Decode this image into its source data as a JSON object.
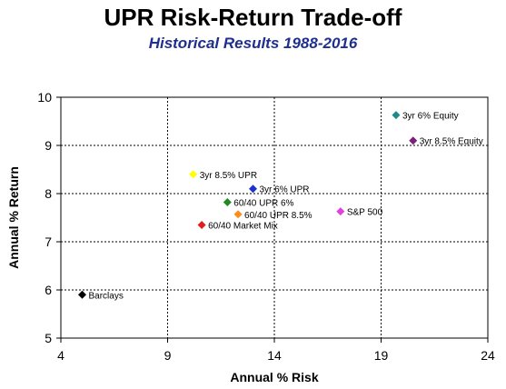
{
  "chart_data": {
    "type": "scatter",
    "title": "UPR Risk-Return Trade-off",
    "subtitle": "Historical Results 1988-2016",
    "xlabel": "Annual % Risk",
    "ylabel": "Annual % Return",
    "xlim": [
      4,
      24
    ],
    "ylim": [
      5,
      10
    ],
    "xticks": [
      "4",
      "9",
      "14",
      "19",
      "24"
    ],
    "yticks": [
      "5",
      "6",
      "7",
      "8",
      "9",
      "10"
    ],
    "grid": true,
    "points": [
      {
        "name": "3yr 6% Equity",
        "x": 19.7,
        "y": 9.63,
        "color": "#1f8a8a"
      },
      {
        "name": "3yr 8.5% Equity",
        "x": 20.5,
        "y": 9.1,
        "color": "#7a1f7a"
      },
      {
        "name": "3yr 8.5% UPR",
        "x": 10.2,
        "y": 8.4,
        "color": "#ffff00"
      },
      {
        "name": "3yr 6% UPR",
        "x": 13.0,
        "y": 8.1,
        "color": "#1f2fd0"
      },
      {
        "name": "60/40 UPR 6%",
        "x": 11.8,
        "y": 7.82,
        "color": "#1f8a1f"
      },
      {
        "name": "60/40 UPR 8.5%",
        "x": 12.3,
        "y": 7.57,
        "color": "#ff8c1a"
      },
      {
        "name": "60/40 Market Mix",
        "x": 10.6,
        "y": 7.35,
        "color": "#e01f1f"
      },
      {
        "name": "S&P 500",
        "x": 17.1,
        "y": 7.63,
        "color": "#e040e0"
      },
      {
        "name": "Barclays",
        "x": 5.0,
        "y": 5.9,
        "color": "#000000"
      }
    ]
  }
}
